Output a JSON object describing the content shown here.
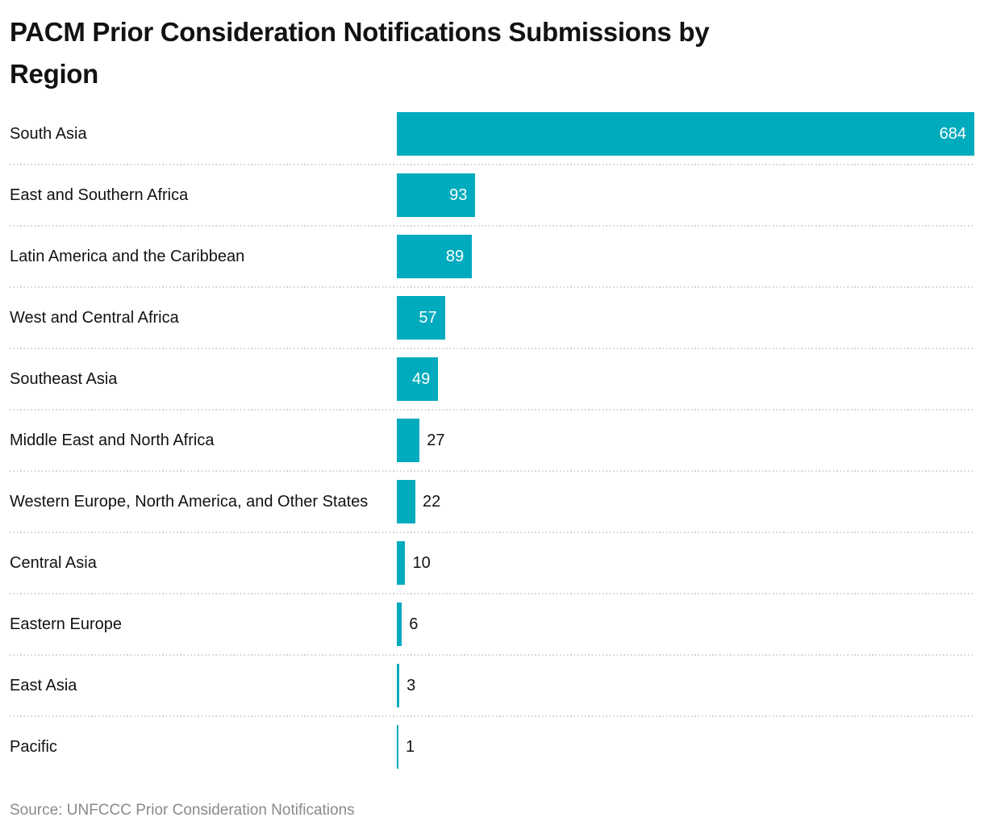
{
  "header": {
    "title_lines": {
      "line1": "PACM Prior Consideration Notifications Submissions by",
      "line2": "Region"
    }
  },
  "footer": {
    "source": "Source: UNFCCC Prior Consideration Notifications"
  },
  "colors": {
    "bar": "#00abbd",
    "title_text": "#121212",
    "label_text": "#121212",
    "value_inside_text": "#ffffff",
    "value_outside_text": "#121212",
    "separator": "#d2d2d2",
    "source_text": "#8a8a8a",
    "background": "#ffffff"
  },
  "chart_data": {
    "type": "bar",
    "orientation": "horizontal",
    "title": "PACM Prior Consideration Notifications Submissions by Region",
    "categories": [
      "South Asia",
      "East and Southern Africa",
      "Latin America and the Caribbean",
      "West and Central Africa",
      "Southeast Asia",
      "Middle East and North Africa",
      "Western Europe, North America, and Other States",
      "Central Asia",
      "Eastern Europe",
      "East Asia",
      "Pacific"
    ],
    "values": [
      684,
      93,
      89,
      57,
      49,
      27,
      22,
      10,
      6,
      3,
      1
    ],
    "xlabel": "",
    "ylabel": "",
    "xlim": [
      0,
      684
    ],
    "grid": false,
    "legend": false,
    "value_labels": true,
    "source": "Source: UNFCCC Prior Consideration Notifications"
  }
}
